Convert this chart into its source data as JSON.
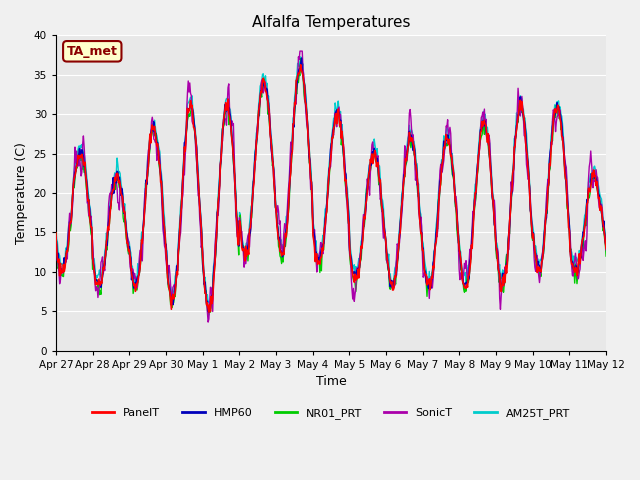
{
  "title": "Alfalfa Temperatures",
  "xlabel": "Time",
  "ylabel": "Temperature (C)",
  "ylim": [
    0,
    40
  ],
  "yticks": [
    0,
    5,
    10,
    15,
    20,
    25,
    30,
    35,
    40
  ],
  "series_colors": {
    "PanelT": "#ff0000",
    "HMP60": "#0000bb",
    "NR01_PRT": "#00cc00",
    "SonicT": "#aa00aa",
    "AM25T_PRT": "#00cccc"
  },
  "annotation_text": "TA_met",
  "annotation_color": "#8B0000",
  "annotation_bg": "#ffffcc",
  "plot_bg": "#e8e8e8",
  "fig_bg": "#f0f0f0",
  "tick_labels": [
    "Apr 27",
    "Apr 28",
    "Apr 29",
    "Apr 30",
    "May 1",
    "May 2",
    "May 3",
    "May 4",
    "May 5",
    "May 6",
    "May 7",
    "May 8",
    "May 9",
    "May 10",
    "May 11",
    "May 12"
  ],
  "tick_positions": [
    0,
    1,
    2,
    3,
    4,
    5,
    6,
    7,
    8,
    9,
    10,
    11,
    12,
    13,
    14,
    15
  ]
}
